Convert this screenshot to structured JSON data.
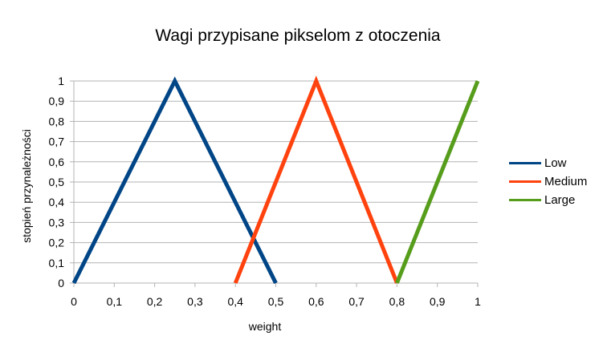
{
  "chart_data": {
    "type": "line",
    "title": "Wagi przypisane pikselom z otoczenia",
    "xlabel": "weight",
    "ylabel": "stopień przynależności",
    "xlim": [
      0,
      1
    ],
    "ylim": [
      0,
      1
    ],
    "x_ticks": [
      "0",
      "0,1",
      "0,2",
      "0,3",
      "0,4",
      "0,5",
      "0,6",
      "0,7",
      "0,8",
      "0,9",
      "1"
    ],
    "y_ticks": [
      "0",
      "0,1",
      "0,2",
      "0,3",
      "0,4",
      "0,5",
      "0,6",
      "0,7",
      "0,8",
      "0,9",
      "1"
    ],
    "grid": true,
    "legend_position": "right",
    "series": [
      {
        "name": "Low",
        "color": "#004586",
        "points": [
          [
            0,
            0
          ],
          [
            0.25,
            1
          ],
          [
            0.5,
            0
          ]
        ]
      },
      {
        "name": "Medium",
        "color": "#ff420e",
        "points": [
          [
            0.4,
            0
          ],
          [
            0.6,
            1
          ],
          [
            0.8,
            0
          ]
        ]
      },
      {
        "name": "Large",
        "color": "#579d1c",
        "points": [
          [
            0.8,
            0
          ],
          [
            1,
            1
          ]
        ]
      }
    ]
  }
}
